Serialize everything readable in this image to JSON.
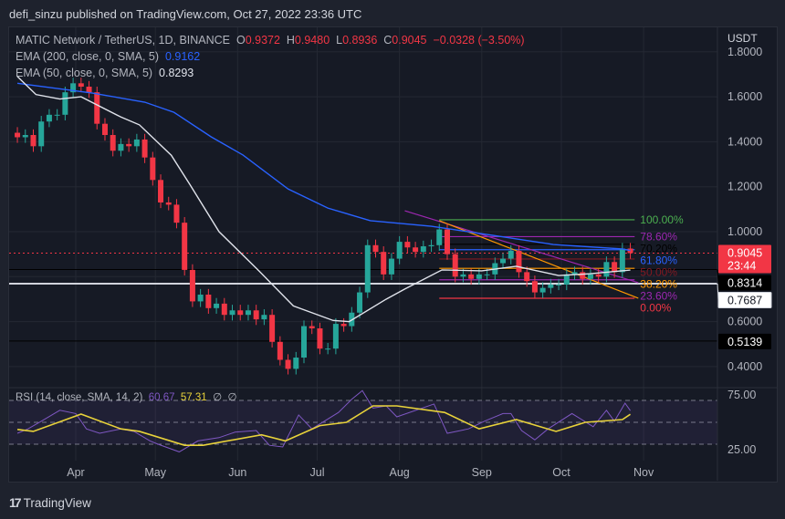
{
  "header": {
    "published": "defi_sinzu published on TradingView.com, Oct 27, 2022 23:36 UTC"
  },
  "legend": {
    "symbol": "MATIC Network / TetherUS, 1D, BINANCE",
    "o_label": "O",
    "o": "0.9372",
    "h_label": "H",
    "h": "0.9480",
    "l_label": "L",
    "l": "0.8936",
    "c_label": "C",
    "c": "0.9045",
    "change": "−0.0328 (−3.50%)",
    "ema200_label": "EMA (200, close, 0, SMA, 5)",
    "ema200_value": "0.9162",
    "ema50_label": "EMA (50, close, 0, SMA, 5)",
    "ema50_value": "0.8293"
  },
  "rsi_legend": {
    "label": "RSI (14, close, SMA, 14, 2)",
    "rsi": "60.67",
    "sma": "57.31",
    "extra1": "∅",
    "extra2": "∅"
  },
  "price_axis": {
    "currency": "USDT",
    "ticks": [
      "1.8000",
      "1.6000",
      "1.4000",
      "1.2000",
      "1.0000",
      "0.6000",
      "0.4000"
    ],
    "current_price": "0.9045",
    "countdown": "23:44",
    "markers": [
      {
        "value": "0.8314",
        "style": "black"
      },
      {
        "value": "0.7687",
        "style": "white"
      },
      {
        "value": "0.5139",
        "style": "black"
      }
    ]
  },
  "rsi_axis": {
    "ticks": [
      "75.00",
      "25.00"
    ]
  },
  "time_axis": {
    "ticks": [
      "Apr",
      "May",
      "Jun",
      "Jul",
      "Aug",
      "Sep",
      "Oct",
      "Nov"
    ]
  },
  "colors": {
    "up": "#26a69a",
    "down": "#f23645",
    "ema200": "#2962ff",
    "ema50": "#e0e3eb",
    "rsi": "#7e57c2",
    "rsi_sma": "#e8d23a",
    "background": "#161a25"
  },
  "logo": {
    "text": "TradingView"
  },
  "chart_data": [
    {
      "type": "candlestick",
      "title": "MATIC Network / TetherUS, 1D, BINANCE",
      "ylabel": "USDT",
      "ylim": [
        0.33,
        1.9
      ],
      "xlim": [
        "2022-03-07",
        "2022-11-07"
      ],
      "grid": true,
      "scale": "linear",
      "candles": {
        "dates": [
          "2022-03-10",
          "2022-03-13",
          "2022-03-16",
          "2022-03-19",
          "2022-03-22",
          "2022-03-25",
          "2022-03-28",
          "2022-03-31",
          "2022-04-03",
          "2022-04-06",
          "2022-04-09",
          "2022-04-12",
          "2022-04-15",
          "2022-04-18",
          "2022-04-21",
          "2022-04-24",
          "2022-04-27",
          "2022-04-30",
          "2022-05-03",
          "2022-05-06",
          "2022-05-09",
          "2022-05-12",
          "2022-05-15",
          "2022-05-18",
          "2022-05-21",
          "2022-05-24",
          "2022-05-27",
          "2022-05-30",
          "2022-06-02",
          "2022-06-05",
          "2022-06-08",
          "2022-06-11",
          "2022-06-14",
          "2022-06-17",
          "2022-06-20",
          "2022-06-23",
          "2022-06-26",
          "2022-06-29",
          "2022-07-02",
          "2022-07-05",
          "2022-07-08",
          "2022-07-11",
          "2022-07-14",
          "2022-07-17",
          "2022-07-20",
          "2022-07-23",
          "2022-07-26",
          "2022-07-29",
          "2022-08-01",
          "2022-08-04",
          "2022-08-07",
          "2022-08-10",
          "2022-08-13",
          "2022-08-16",
          "2022-08-19",
          "2022-08-22",
          "2022-08-25",
          "2022-08-28",
          "2022-08-31",
          "2022-09-03",
          "2022-09-06",
          "2022-09-09",
          "2022-09-12",
          "2022-09-15",
          "2022-09-18",
          "2022-09-21",
          "2022-09-24",
          "2022-09-27",
          "2022-09-30",
          "2022-10-03",
          "2022-10-06",
          "2022-10-09",
          "2022-10-12",
          "2022-10-15",
          "2022-10-18",
          "2022-10-21",
          "2022-10-24",
          "2022-10-27"
        ],
        "close": [
          1.42,
          1.43,
          1.38,
          1.49,
          1.52,
          1.52,
          1.62,
          1.66,
          1.645,
          1.62,
          1.48,
          1.43,
          1.36,
          1.39,
          1.38,
          1.41,
          1.33,
          1.23,
          1.13,
          1.12,
          1.04,
          0.83,
          0.69,
          0.72,
          0.66,
          0.68,
          0.63,
          0.65,
          0.63,
          0.65,
          0.61,
          0.63,
          0.51,
          0.43,
          0.39,
          0.44,
          0.58,
          0.57,
          0.48,
          0.48,
          0.59,
          0.58,
          0.64,
          0.73,
          0.94,
          0.91,
          0.81,
          0.88,
          0.955,
          0.93,
          0.91,
          0.935,
          0.94,
          1.01,
          0.9,
          0.8,
          0.81,
          0.79,
          0.81,
          0.81,
          0.86,
          0.88,
          0.915,
          0.82,
          0.78,
          0.73,
          0.75,
          0.765,
          0.765,
          0.81,
          0.82,
          0.79,
          0.81,
          0.8,
          0.865,
          0.82,
          0.925,
          0.9045
        ]
      },
      "series": [
        {
          "name": "EMA (200, close, 0, SMA, 5)",
          "color": "#2962ff",
          "points": [
            [
              "2022-03-10",
              1.66
            ],
            [
              "2022-04-07",
              1.617
            ],
            [
              "2022-04-27",
              1.576
            ],
            [
              "2022-05-08",
              1.531
            ],
            [
              "2022-05-22",
              1.422
            ],
            [
              "2022-06-03",
              1.341
            ],
            [
              "2022-06-20",
              1.19
            ],
            [
              "2022-07-05",
              1.105
            ],
            [
              "2022-07-21",
              1.049
            ],
            [
              "2022-08-13",
              1.024
            ],
            [
              "2022-09-05",
              0.984
            ],
            [
              "2022-09-28",
              0.943
            ],
            [
              "2022-10-24",
              0.923
            ],
            [
              "2022-10-27",
              0.9162
            ]
          ]
        },
        {
          "name": "EMA (50, close, 0, SMA, 5)",
          "color": "#e0e3eb",
          "points": [
            [
              "2022-03-10",
              1.69
            ],
            [
              "2022-03-17",
              1.61
            ],
            [
              "2022-03-26",
              1.59
            ],
            [
              "2022-04-03",
              1.6
            ],
            [
              "2022-04-18",
              1.51
            ],
            [
              "2022-04-25",
              1.475
            ],
            [
              "2022-05-07",
              1.34
            ],
            [
              "2022-05-14",
              1.21
            ],
            [
              "2022-05-25",
              1.0
            ],
            [
              "2022-06-09",
              0.826
            ],
            [
              "2022-06-22",
              0.67
            ],
            [
              "2022-07-07",
              0.605
            ],
            [
              "2022-07-13",
              0.6
            ],
            [
              "2022-07-27",
              0.7
            ],
            [
              "2022-08-03",
              0.745
            ],
            [
              "2022-08-17",
              0.83
            ],
            [
              "2022-09-01",
              0.826
            ],
            [
              "2022-09-14",
              0.846
            ],
            [
              "2022-09-30",
              0.805
            ],
            [
              "2022-10-12",
              0.813
            ],
            [
              "2022-10-27",
              0.8293
            ]
          ]
        }
      ],
      "horizontal_lines": [
        {
          "value": 0.8314,
          "color": "#000000"
        },
        {
          "value": 0.7687,
          "color": "#d1d4dc"
        },
        {
          "value": 0.5139,
          "color": "#000000"
        },
        {
          "value": 0.9045,
          "color": "#f23645",
          "style": "dotted"
        }
      ],
      "trendlines": [
        {
          "color": "#9c27b0",
          "from": [
            "2022-08-03",
            1.093
          ],
          "to": [
            "2022-10-30",
            0.773
          ]
        },
        {
          "color": "#ff9800",
          "from": [
            "2022-08-16",
            1.049
          ],
          "to": [
            "2022-10-30",
            0.704
          ]
        }
      ],
      "fibonacci": {
        "from_date": "2022-08-16",
        "to_date": "2022-10-30",
        "levels": [
          {
            "label": "100.00%",
            "value": 1.053,
            "color": "#4caf50"
          },
          {
            "label": "78.60%",
            "value": 0.978,
            "color": "#9c27b0"
          },
          {
            "label": "70.20%",
            "value": 0.944,
            "color": "#000000"
          },
          {
            "label": "61.80%",
            "value": 0.92,
            "color": "#2962ff"
          },
          {
            "label": "50.00%",
            "value": 0.8785,
            "color": "#801922"
          },
          {
            "label": "38.20%",
            "value": 0.837,
            "color": "#ff9800"
          },
          {
            "label": "23.60%",
            "value": 0.786,
            "color": "#9c27b0"
          },
          {
            "label": "0.00%",
            "value": 0.704,
            "color": "#f23645"
          }
        ]
      }
    },
    {
      "type": "line",
      "title": "RSI (14, close, SMA, 14, 2)",
      "ylim": [
        18,
        82
      ],
      "bands": [
        30,
        50,
        70
      ],
      "series": [
        {
          "name": "RSI",
          "color": "#7e57c2",
          "points": [
            [
              "2022-03-10",
              40
            ],
            [
              "2022-03-14",
              44
            ],
            [
              "2022-03-19",
              51
            ],
            [
              "2022-03-26",
              61
            ],
            [
              "2022-04-01",
              58
            ],
            [
              "2022-04-05",
              44
            ],
            [
              "2022-04-10",
              40
            ],
            [
              "2022-04-18",
              44
            ],
            [
              "2022-04-23",
              41.6
            ],
            [
              "2022-04-29",
              33
            ],
            [
              "2022-05-02",
              30
            ],
            [
              "2022-05-10",
              23
            ],
            [
              "2022-05-17",
              33
            ],
            [
              "2022-05-25",
              36
            ],
            [
              "2022-05-31",
              41
            ],
            [
              "2022-06-08",
              42.5
            ],
            [
              "2022-06-13",
              29
            ],
            [
              "2022-06-18",
              27.5
            ],
            [
              "2022-06-24",
              56.7
            ],
            [
              "2022-06-29",
              44
            ],
            [
              "2022-07-09",
              59
            ],
            [
              "2022-07-14",
              71
            ],
            [
              "2022-07-18",
              79
            ],
            [
              "2022-07-22",
              63
            ],
            [
              "2022-07-27",
              65
            ],
            [
              "2022-07-31",
              55
            ],
            [
              "2022-08-14",
              66.7
            ],
            [
              "2022-08-19",
              40
            ],
            [
              "2022-08-27",
              44
            ],
            [
              "2022-09-02",
              51
            ],
            [
              "2022-09-09",
              58
            ],
            [
              "2022-09-12",
              58
            ],
            [
              "2022-09-16",
              42.5
            ],
            [
              "2022-09-21",
              34
            ],
            [
              "2022-09-26",
              44
            ],
            [
              "2022-10-05",
              58
            ],
            [
              "2022-10-13",
              46
            ],
            [
              "2022-10-18",
              61
            ],
            [
              "2022-10-21",
              51
            ],
            [
              "2022-10-25",
              67.5
            ],
            [
              "2022-10-27",
              60.67
            ]
          ]
        },
        {
          "name": "SMA",
          "color": "#e8d23a",
          "points": [
            [
              "2022-03-10",
              43.5
            ],
            [
              "2022-03-16",
              41.7
            ],
            [
              "2022-04-03",
              57.5
            ],
            [
              "2022-04-18",
              44
            ],
            [
              "2022-04-25",
              41.7
            ],
            [
              "2022-05-12",
              29
            ],
            [
              "2022-05-19",
              29
            ],
            [
              "2022-06-10",
              38.6
            ],
            [
              "2022-06-19",
              33
            ],
            [
              "2022-07-02",
              47
            ],
            [
              "2022-07-12",
              50
            ],
            [
              "2022-07-22",
              65
            ],
            [
              "2022-07-31",
              65
            ],
            [
              "2022-08-18",
              59
            ],
            [
              "2022-08-31",
              44
            ],
            [
              "2022-09-14",
              52.5
            ],
            [
              "2022-09-29",
              41.7
            ],
            [
              "2022-10-10",
              50
            ],
            [
              "2022-10-24",
              52.5
            ],
            [
              "2022-10-27",
              57.31
            ]
          ]
        }
      ]
    }
  ]
}
